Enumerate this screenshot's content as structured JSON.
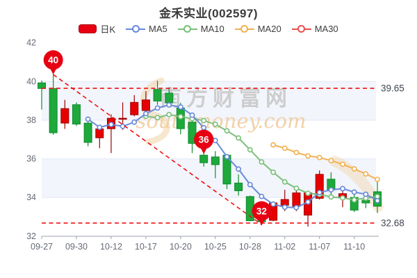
{
  "header": {
    "title": "金禾实业(002597)"
  },
  "legend": [
    {
      "label": "日K",
      "type": "swatch",
      "color": "#e60012"
    },
    {
      "label": "MA5",
      "type": "line-circle",
      "color": "#6688d8"
    },
    {
      "label": "MA10",
      "type": "line-circle",
      "color": "#7abf7a"
    },
    {
      "label": "MA20",
      "type": "line-circle",
      "color": "#f2b04e"
    },
    {
      "label": "MA30",
      "type": "line-circle",
      "color": "#e85050"
    }
  ],
  "watermark": {
    "line1": "南方财富网",
    "line2": "southmoney.com"
  },
  "chart_data": {
    "type": "candlestick",
    "title": "金禾实业(002597)",
    "ylim": [
      32,
      42
    ],
    "y_ticks": [
      42,
      40,
      38,
      36,
      34,
      32
    ],
    "x_ticks": [
      {
        "index": 0,
        "label": "09-27"
      },
      {
        "index": 3,
        "label": "09-30"
      },
      {
        "index": 6,
        "label": "10-12"
      },
      {
        "index": 9,
        "label": "10-17"
      },
      {
        "index": 12,
        "label": "10-20"
      },
      {
        "index": 15,
        "label": "10-25"
      },
      {
        "index": 18,
        "label": "10-28"
      },
      {
        "index": 21,
        "label": "11-02"
      },
      {
        "index": 24,
        "label": "11-07"
      },
      {
        "index": 27,
        "label": "11-10"
      }
    ],
    "candles": [
      {
        "d": "09-27",
        "o": 39.93,
        "h": 40.05,
        "l": 38.55,
        "c": 39.64
      },
      {
        "d": "09-28",
        "o": 39.64,
        "h": 40.36,
        "l": 37.25,
        "c": 37.35
      },
      {
        "d": "09-29",
        "o": 37.85,
        "h": 39.05,
        "l": 37.55,
        "c": 38.6
      },
      {
        "d": "09-30",
        "o": 38.8,
        "h": 38.92,
        "l": 37.7,
        "c": 37.8
      },
      {
        "d": "10-10",
        "o": 37.85,
        "h": 37.95,
        "l": 36.65,
        "c": 36.85
      },
      {
        "d": "10-11",
        "o": 37.09,
        "h": 37.75,
        "l": 36.55,
        "c": 37.55
      },
      {
        "d": "10-12",
        "o": 37.56,
        "h": 38.3,
        "l": 36.3,
        "c": 38.1
      },
      {
        "d": "10-13",
        "o": 38.05,
        "h": 38.92,
        "l": 37.5,
        "c": 38.1
      },
      {
        "d": "10-14",
        "o": 38.28,
        "h": 39.3,
        "l": 38.2,
        "c": 38.92
      },
      {
        "d": "10-17",
        "o": 38.5,
        "h": 39.5,
        "l": 38.4,
        "c": 39.05
      },
      {
        "d": "10-18",
        "o": 39.59,
        "h": 40.04,
        "l": 38.8,
        "c": 38.99
      },
      {
        "d": "10-19",
        "o": 39.4,
        "h": 39.7,
        "l": 38.85,
        "c": 38.9
      },
      {
        "d": "10-20",
        "o": 38.63,
        "h": 38.9,
        "l": 37.27,
        "c": 37.56
      },
      {
        "d": "10-21",
        "o": 37.9,
        "h": 37.95,
        "l": 36.3,
        "c": 36.8
      },
      {
        "d": "10-24",
        "o": 36.19,
        "h": 36.3,
        "l": 35.6,
        "c": 35.8
      },
      {
        "d": "10-25",
        "o": 36.1,
        "h": 36.4,
        "l": 35.0,
        "c": 35.7
      },
      {
        "d": "10-26",
        "o": 36.19,
        "h": 36.25,
        "l": 34.44,
        "c": 34.7
      },
      {
        "d": "10-27",
        "o": 34.75,
        "h": 35.2,
        "l": 34.1,
        "c": 34.35
      },
      {
        "d": "10-28",
        "o": 34.05,
        "h": 34.1,
        "l": 32.78,
        "c": 32.8
      },
      {
        "d": "10-31",
        "o": 33.4,
        "h": 33.5,
        "l": 32.68,
        "c": 32.75
      },
      {
        "d": "11-01",
        "o": 32.82,
        "h": 33.8,
        "l": 32.78,
        "c": 33.72
      },
      {
        "d": "11-02",
        "o": 33.6,
        "h": 34.4,
        "l": 33.3,
        "c": 33.9
      },
      {
        "d": "11-03",
        "o": 33.55,
        "h": 34.6,
        "l": 33.3,
        "c": 34.24
      },
      {
        "d": "11-04",
        "o": 33.09,
        "h": 34.3,
        "l": 32.5,
        "c": 34.24
      },
      {
        "d": "11-07",
        "o": 33.96,
        "h": 35.4,
        "l": 33.9,
        "c": 35.2
      },
      {
        "d": "11-08",
        "o": 34.95,
        "h": 35.3,
        "l": 34.0,
        "c": 34.4
      },
      {
        "d": "11-09",
        "o": 34.0,
        "h": 34.6,
        "l": 33.5,
        "c": 34.2
      },
      {
        "d": "11-10",
        "o": 34.0,
        "h": 34.25,
        "l": 33.25,
        "c": 33.35
      },
      {
        "d": "11-11",
        "o": 33.86,
        "h": 34.3,
        "l": 33.45,
        "c": 33.72
      },
      {
        "d": "11-14",
        "o": 34.3,
        "h": 34.9,
        "l": 33.2,
        "c": 33.55
      }
    ],
    "series": [
      {
        "name": "MA5",
        "start": 4,
        "values": [
          38.05,
          37.63,
          37.78,
          37.68,
          37.9,
          38.34,
          38.63,
          38.79,
          38.68,
          38.26,
          37.61,
          36.95,
          36.11,
          35.47,
          34.67,
          34.06,
          33.66,
          33.5,
          33.48,
          33.77,
          34.26,
          34.4,
          34.46,
          34.28,
          34.17,
          33.84
        ]
      },
      {
        "name": "MA10",
        "start": 9,
        "values": [
          38.2,
          38.13,
          38.29,
          38.18,
          38.08,
          37.98,
          37.79,
          37.45,
          37.08,
          36.47,
          35.84,
          35.31,
          34.81,
          34.48,
          34.22,
          34.16,
          34.03,
          33.98,
          33.88,
          33.97,
          34.05
        ]
      },
      {
        "name": "MA20",
        "start": 20,
        "values": [
          36.72,
          36.55,
          36.33,
          36.15,
          36.07,
          35.91,
          35.72,
          35.48,
          35.22,
          34.94
        ]
      },
      {
        "name": "MA30",
        "start": 0,
        "values": []
      }
    ],
    "hlines": [
      {
        "value": 39.65,
        "label": "39.65"
      },
      {
        "value": 32.68,
        "label": "32.68"
      }
    ],
    "trendline": {
      "from": {
        "index": 1,
        "price": 40.36
      },
      "to": {
        "index": 19,
        "price": 32.6
      }
    },
    "annotations": [
      {
        "label": "40",
        "index": 1,
        "price": 40.36
      },
      {
        "label": "36",
        "index": 14,
        "price": 36.25
      },
      {
        "label": "32",
        "index": 19,
        "price": 32.55
      }
    ],
    "colors": {
      "up": "#e60000",
      "up_border": "#9d0000",
      "down": "#1fa83b",
      "down_border": "#0e8c2e",
      "ma5": "#6688d8",
      "ma10": "#7abf7a",
      "ma20": "#f2b04e",
      "ma30": "#e85050",
      "dashed": "#f01010",
      "band": "#f2f5fb",
      "grid": "#e2e8f4",
      "axis_text": "#646a75",
      "axis_line": "#9aa0ab",
      "balloon": "#e60012",
      "price_label": "#3f4450",
      "watermark_cn": "#c4c4c4",
      "watermark_en": "#f2cda0",
      "watermark_swoosh": "#f2d4a8"
    }
  }
}
